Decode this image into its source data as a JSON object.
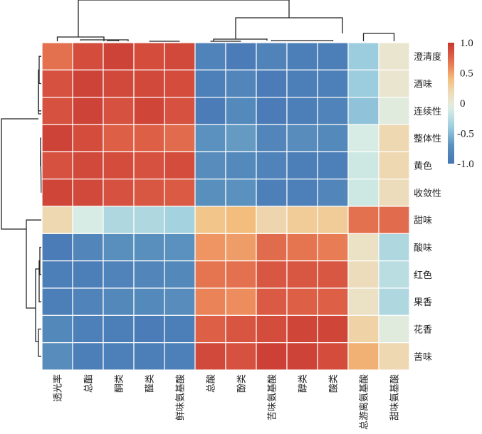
{
  "chart_data": {
    "type": "heatmap",
    "title": "",
    "rows": [
      "澄清度",
      "酒味",
      "连续性",
      "整体性",
      "黄色",
      "收敛性",
      "甜味",
      "酸味",
      "红色",
      "果香",
      "花香",
      "苦味"
    ],
    "columns": [
      "透光率",
      "总酯",
      "酮类",
      "醛类",
      "鲜味氨基酸",
      "总酸",
      "酚类",
      "苦味氨基酸",
      "醇类",
      "酸类",
      "总游离氨基酸",
      "甜味氨基酸"
    ],
    "values": [
      [
        0.7,
        0.88,
        0.93,
        0.88,
        0.9,
        -0.85,
        -0.92,
        -0.84,
        -0.9,
        -0.9,
        -0.4,
        0.05
      ],
      [
        0.85,
        0.93,
        0.9,
        0.9,
        0.88,
        -0.88,
        -0.82,
        -0.92,
        -0.9,
        -0.88,
        -0.4,
        0.05
      ],
      [
        0.85,
        0.93,
        0.85,
        0.92,
        0.85,
        -0.92,
        -0.78,
        -0.92,
        -0.9,
        -0.85,
        -0.45,
        -0.05
      ],
      [
        0.93,
        0.88,
        0.78,
        0.78,
        0.72,
        -0.7,
        -0.65,
        -0.82,
        -0.75,
        -0.78,
        -0.1,
        0.2
      ],
      [
        0.85,
        0.9,
        0.88,
        0.85,
        0.88,
        -0.75,
        -0.78,
        -0.85,
        -0.9,
        -0.88,
        -0.15,
        0.2
      ],
      [
        0.92,
        0.9,
        0.85,
        0.82,
        0.8,
        -0.72,
        -0.7,
        -0.88,
        -0.88,
        -0.82,
        -0.15,
        0.15
      ],
      [
        0.2,
        -0.1,
        -0.3,
        -0.3,
        -0.35,
        0.35,
        0.4,
        0.22,
        0.3,
        0.3,
        0.7,
        0.72
      ],
      [
        -0.92,
        -0.82,
        -0.72,
        -0.72,
        -0.7,
        0.55,
        0.52,
        0.72,
        0.68,
        0.65,
        0.1,
        -0.3
      ],
      [
        -0.9,
        -0.9,
        -0.85,
        -0.82,
        -0.8,
        0.68,
        0.7,
        0.82,
        0.82,
        0.82,
        0.15,
        -0.25
      ],
      [
        -0.9,
        -0.85,
        -0.8,
        -0.78,
        -0.75,
        0.62,
        0.58,
        0.8,
        0.78,
        0.78,
        0.1,
        -0.3
      ],
      [
        -0.8,
        -0.88,
        -0.9,
        -0.92,
        -0.9,
        0.78,
        0.83,
        0.88,
        0.92,
        0.92,
        0.25,
        -0.05
      ],
      [
        -0.75,
        -0.9,
        -0.88,
        -0.9,
        -0.88,
        0.9,
        0.85,
        0.95,
        0.93,
        0.88,
        0.45,
        0.2
      ]
    ],
    "colorbar": {
      "range": [
        -1.0,
        1.0
      ],
      "ticks": [
        "1.0",
        "0.5",
        "0",
        "-0.5",
        "-1.0"
      ],
      "tick_values": [
        1.0,
        0.5,
        0,
        -0.5,
        -1.0
      ],
      "colormap": [
        "#313695",
        "#4575b4",
        "#74add1",
        "#abd9e9",
        "#e0f3f8",
        "#ffffbf",
        "#fee090",
        "#fdae61",
        "#f46d43",
        "#d73027",
        "#a50026"
      ]
    },
    "row_dendrogram": true,
    "column_dendrogram": true,
    "legend_position": "top-right"
  }
}
